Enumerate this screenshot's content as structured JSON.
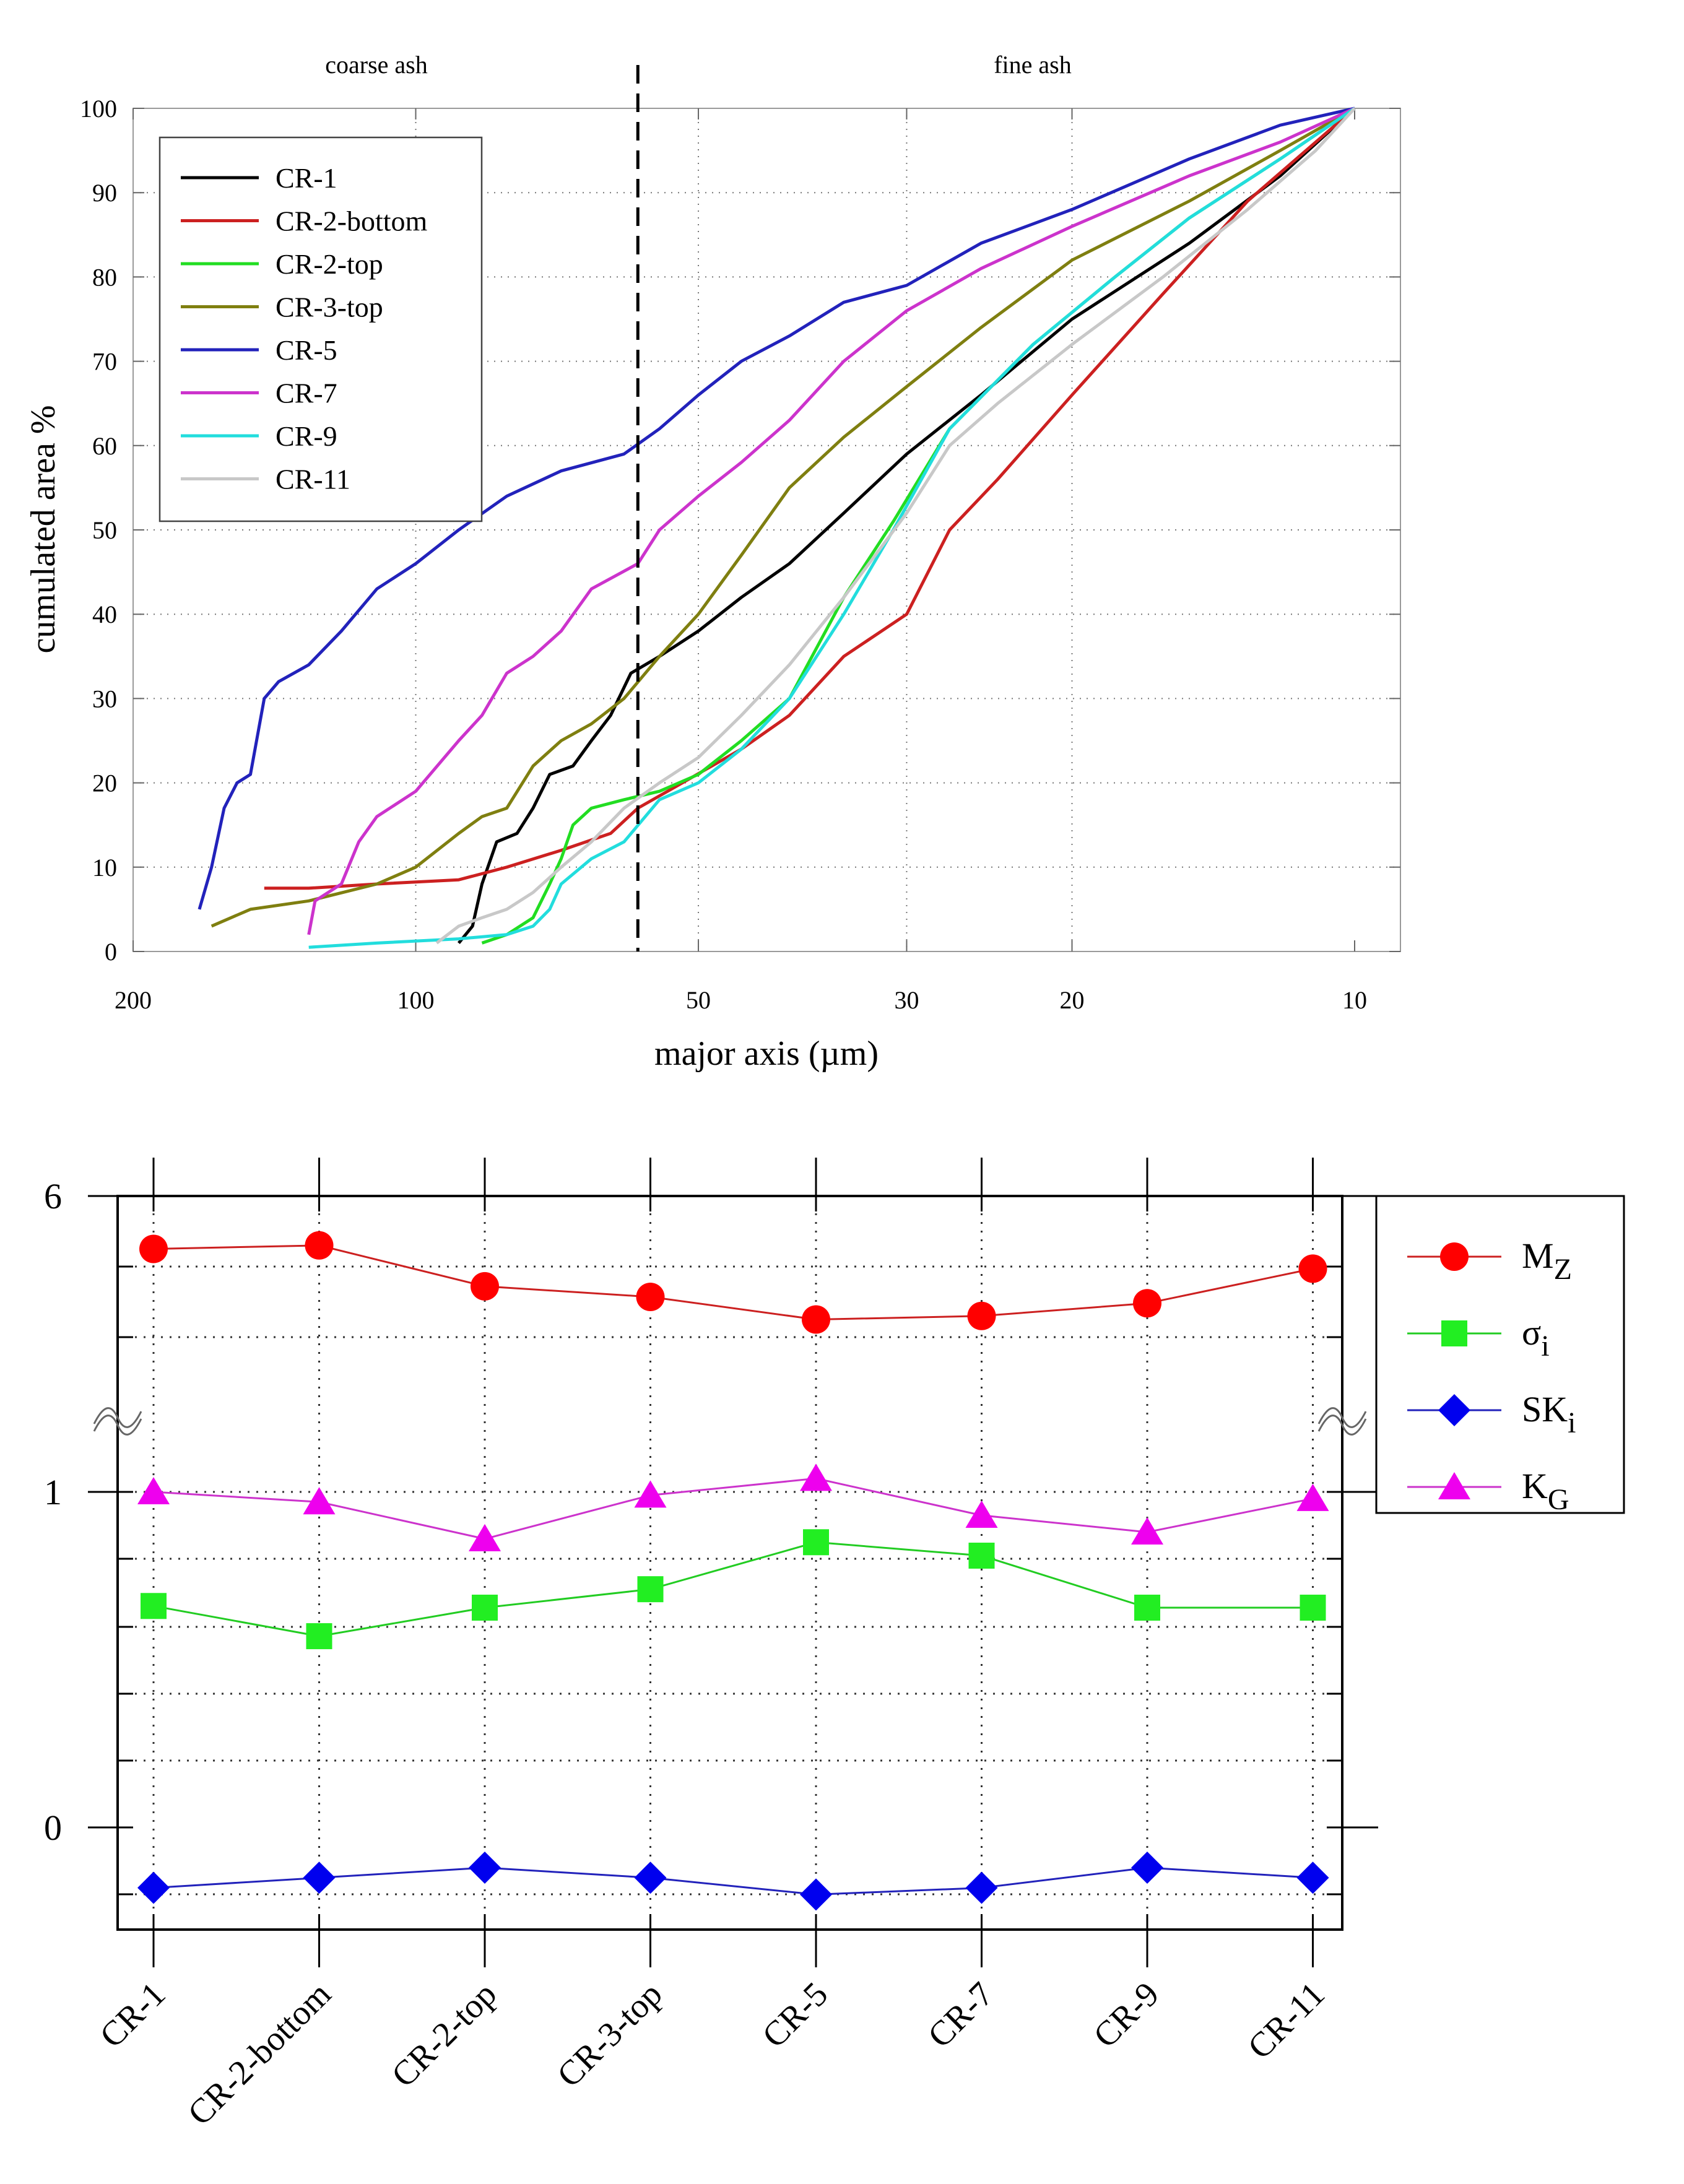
{
  "chart_data": [
    {
      "type": "line",
      "title": "",
      "xlabel": "major axis (µm)",
      "ylabel": "cumulated area %",
      "x_scale": "log",
      "x_reversed": true,
      "xlim": [
        200,
        10
      ],
      "ylim": [
        0,
        100
      ],
      "x_ticks": [
        200,
        100,
        50,
        30,
        20,
        10
      ],
      "x_tick_labels": [
        "200",
        "100",
        "50",
        "30",
        "20",
        "10"
      ],
      "y_ticks": [
        0,
        10,
        20,
        30,
        40,
        50,
        60,
        70,
        80,
        90,
        100
      ],
      "y_tick_labels": [
        "0",
        "10",
        "20",
        "30",
        "40",
        "50",
        "60",
        "70",
        "80",
        "90",
        "100"
      ],
      "grid": "dotted",
      "legend_position": "top-left",
      "divider": {
        "x": 58,
        "style": "dashed"
      },
      "annotations": [
        {
          "text": "coarse ash",
          "x": 100
        },
        {
          "text": "fine ash",
          "x": 27
        }
      ],
      "series": [
        {
          "name": "CR-1",
          "color": "#000000",
          "points": [
            [
              90,
              1
            ],
            [
              87,
              3
            ],
            [
              85,
              8
            ],
            [
              82,
              13
            ],
            [
              78,
              14
            ],
            [
              75,
              17
            ],
            [
              72,
              21
            ],
            [
              68,
              22
            ],
            [
              65,
              25
            ],
            [
              62,
              28
            ],
            [
              59,
              33
            ],
            [
              55,
              35
            ],
            [
              50,
              38
            ],
            [
              45,
              42
            ],
            [
              40,
              46
            ],
            [
              35,
              52
            ],
            [
              30,
              59
            ],
            [
              25,
              66
            ],
            [
              20,
              75
            ],
            [
              15,
              84
            ],
            [
              12,
              92
            ],
            [
              10,
              100
            ]
          ]
        },
        {
          "name": "CR-2-bottom",
          "color": "#cc2020",
          "points": [
            [
              145,
              7.5
            ],
            [
              130,
              7.5
            ],
            [
              110,
              8
            ],
            [
              90,
              8.5
            ],
            [
              80,
              10
            ],
            [
              70,
              12
            ],
            [
              62,
              14
            ],
            [
              58,
              17
            ],
            [
              52,
              20
            ],
            [
              45,
              24
            ],
            [
              40,
              28
            ],
            [
              35,
              35
            ],
            [
              30,
              40
            ],
            [
              27,
              50
            ],
            [
              24,
              56
            ],
            [
              20,
              66
            ],
            [
              16,
              78
            ],
            [
              13,
              89
            ],
            [
              11,
              96
            ],
            [
              10,
              100
            ]
          ]
        },
        {
          "name": "CR-2-top",
          "color": "#22dd22",
          "points": [
            [
              85,
              1
            ],
            [
              80,
              2
            ],
            [
              75,
              4
            ],
            [
              72,
              8
            ],
            [
              70,
              11
            ],
            [
              68,
              15
            ],
            [
              65,
              17
            ],
            [
              60,
              18
            ],
            [
              55,
              19
            ],
            [
              50,
              21
            ],
            [
              45,
              25
            ],
            [
              40,
              30
            ],
            [
              35,
              42
            ],
            [
              31,
              51
            ],
            [
              27,
              62
            ],
            [
              22,
              72
            ],
            [
              18,
              80
            ],
            [
              15,
              87
            ],
            [
              12,
              94
            ],
            [
              10,
              100
            ]
          ]
        },
        {
          "name": "CR-3-top",
          "color": "#7f7f10",
          "points": [
            [
              165,
              3
            ],
            [
              150,
              5
            ],
            [
              130,
              6
            ],
            [
              110,
              8
            ],
            [
              100,
              10
            ],
            [
              90,
              14
            ],
            [
              85,
              16
            ],
            [
              80,
              17
            ],
            [
              75,
              22
            ],
            [
              70,
              25
            ],
            [
              65,
              27
            ],
            [
              60,
              30
            ],
            [
              55,
              35
            ],
            [
              50,
              40
            ],
            [
              45,
              47
            ],
            [
              40,
              55
            ],
            [
              35,
              61
            ],
            [
              30,
              67
            ],
            [
              25,
              74
            ],
            [
              20,
              82
            ],
            [
              15,
              89
            ],
            [
              12,
              95
            ],
            [
              10,
              100
            ]
          ]
        },
        {
          "name": "CR-5",
          "color": "#2222bb",
          "points": [
            [
              170,
              5
            ],
            [
              165,
              10
            ],
            [
              160,
              17
            ],
            [
              155,
              20
            ],
            [
              150,
              21
            ],
            [
              145,
              30
            ],
            [
              140,
              32
            ],
            [
              130,
              34
            ],
            [
              120,
              38
            ],
            [
              110,
              43
            ],
            [
              100,
              46
            ],
            [
              90,
              50
            ],
            [
              80,
              54
            ],
            [
              70,
              57
            ],
            [
              60,
              59
            ],
            [
              55,
              62
            ],
            [
              50,
              66
            ],
            [
              45,
              70
            ],
            [
              40,
              73
            ],
            [
              35,
              77
            ],
            [
              30,
              79
            ],
            [
              25,
              84
            ],
            [
              20,
              88
            ],
            [
              15,
              94
            ],
            [
              12,
              98
            ],
            [
              10,
              100
            ]
          ]
        },
        {
          "name": "CR-7",
          "color": "#cc33cc",
          "points": [
            [
              130,
              2
            ],
            [
              128,
              6
            ],
            [
              120,
              8
            ],
            [
              115,
              13
            ],
            [
              110,
              16
            ],
            [
              100,
              19
            ],
            [
              90,
              25
            ],
            [
              85,
              28
            ],
            [
              80,
              33
            ],
            [
              75,
              35
            ],
            [
              70,
              38
            ],
            [
              65,
              43
            ],
            [
              58,
              46
            ],
            [
              55,
              50
            ],
            [
              50,
              54
            ],
            [
              45,
              58
            ],
            [
              40,
              63
            ],
            [
              35,
              70
            ],
            [
              30,
              76
            ],
            [
              25,
              81
            ],
            [
              20,
              86
            ],
            [
              15,
              92
            ],
            [
              12,
              96
            ],
            [
              10,
              100
            ]
          ]
        },
        {
          "name": "CR-9",
          "color": "#22dddd",
          "points": [
            [
              130,
              0.5
            ],
            [
              110,
              1
            ],
            [
              90,
              1.5
            ],
            [
              80,
              2
            ],
            [
              75,
              3
            ],
            [
              72,
              5
            ],
            [
              70,
              8
            ],
            [
              65,
              11
            ],
            [
              60,
              13
            ],
            [
              55,
              18
            ],
            [
              50,
              20
            ],
            [
              45,
              24
            ],
            [
              40,
              30
            ],
            [
              35,
              40
            ],
            [
              31,
              50
            ],
            [
              27,
              62
            ],
            [
              22,
              72
            ],
            [
              18,
              80
            ],
            [
              15,
              87
            ],
            [
              12,
              94
            ],
            [
              10,
              100
            ]
          ]
        },
        {
          "name": "CR-11",
          "color": "#c8c8c8",
          "points": [
            [
              95,
              1
            ],
            [
              90,
              3
            ],
            [
              85,
              4
            ],
            [
              80,
              5
            ],
            [
              75,
              7
            ],
            [
              70,
              10
            ],
            [
              65,
              13
            ],
            [
              60,
              17
            ],
            [
              55,
              20
            ],
            [
              50,
              23
            ],
            [
              45,
              28
            ],
            [
              40,
              34
            ],
            [
              35,
              42
            ],
            [
              30,
              52
            ],
            [
              27,
              60
            ],
            [
              24,
              65
            ],
            [
              20,
              72
            ],
            [
              16,
              80
            ],
            [
              13,
              88
            ],
            [
              11,
              95
            ],
            [
              10,
              100
            ]
          ]
        }
      ]
    },
    {
      "type": "line",
      "title": "",
      "xlabel": "",
      "ylabel": "",
      "y_axis_break": "between 1 and the upper panel",
      "y_tick_labels": [
        "6",
        "1",
        "0"
      ],
      "categories": [
        "CR-1",
        "CR-2-bottom",
        "CR-2-top",
        "CR-3-top",
        "CR-5",
        "CR-7",
        "CR-9",
        "CR-11"
      ],
      "legend_position": "right",
      "grid": "dotted",
      "series": [
        {
          "name": "M",
          "sub": "Z",
          "marker": "circle",
          "color": "#ff0000",
          "line_color": "#cc2020",
          "values": [
            5.25,
            5.3,
            4.72,
            4.57,
            4.25,
            4.3,
            4.48,
            4.97
          ]
        },
        {
          "name": "σ",
          "sub": "i",
          "marker": "square",
          "color": "#22ee22",
          "line_color": "#22cc22",
          "values": [
            0.66,
            0.57,
            0.655,
            0.71,
            0.85,
            0.81,
            0.655,
            0.655
          ]
        },
        {
          "name": "SK",
          "sub": "i",
          "marker": "diamond",
          "color": "#0000ee",
          "line_color": "#2222bb",
          "values": [
            -0.18,
            -0.15,
            -0.12,
            -0.15,
            -0.2,
            -0.18,
            -0.12,
            -0.15
          ]
        },
        {
          "name": "K",
          "sub": "G",
          "marker": "triangle",
          "color": "#ee00ee",
          "line_color": "#cc33cc",
          "values": [
            1.0,
            0.97,
            0.86,
            0.99,
            1.04,
            0.93,
            0.88,
            0.98
          ]
        }
      ]
    }
  ]
}
